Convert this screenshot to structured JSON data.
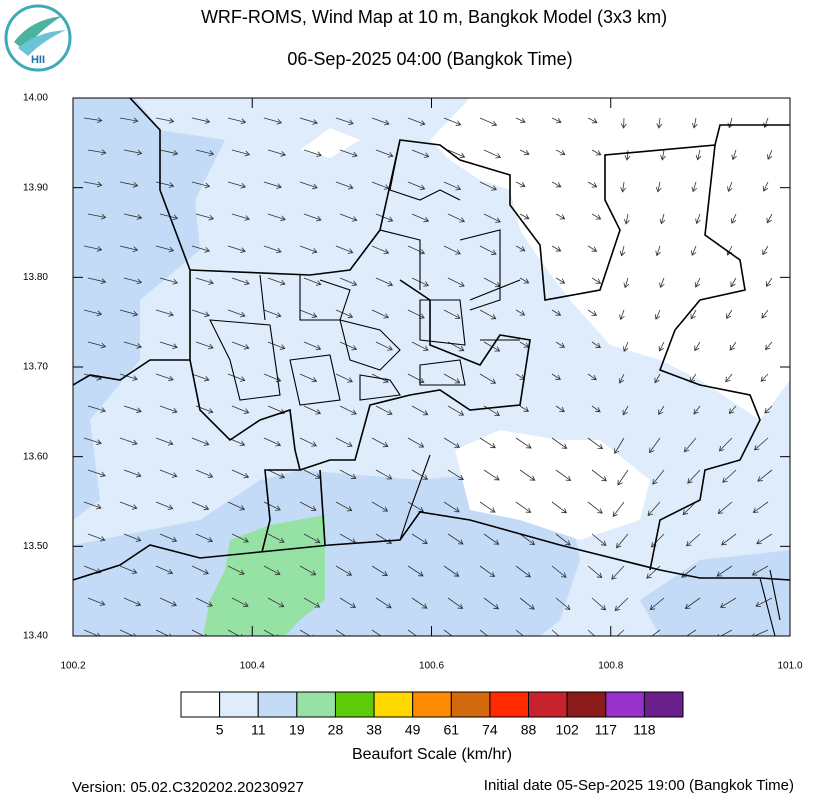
{
  "header": {
    "title": "WRF-ROMS, Wind Map at 10 m, Bangkok Model (3x3 km)",
    "subtitle": "06-Sep-2025 04:00 (Bangkok Time)",
    "logo_text": "HII"
  },
  "map": {
    "xlim": [
      100.2,
      101
    ],
    "xticks": [
      100.2,
      100.4,
      100.6,
      100.8,
      {
        "value": 101,
        "label": "101.0"
      }
    ],
    "ylim": [
      13.4,
      14
    ],
    "yticks": [
      {
        "value": 13.4,
        "label": "13.40"
      },
      {
        "value": 13.5,
        "label": "13.50"
      },
      {
        "value": 13.6,
        "label": "13.60"
      },
      {
        "value": 13.7,
        "label": "13.70"
      },
      {
        "value": 13.8,
        "label": "13.80"
      },
      {
        "value": 13.9,
        "label": "13.90"
      },
      {
        "value": 14,
        "label": "14.00"
      }
    ]
  },
  "colorbar": {
    "title": "Beaufort Scale (km/hr)",
    "colors": [
      "#ffffff",
      "#dfecfb",
      "#c3dbf7",
      "#96e2a4",
      "#5ecb0a",
      "#ffd800",
      "#ff8c00",
      "#d2690f",
      "#ff2a00",
      "#c8232d",
      "#8b1a1a",
      "#9932cc",
      "#6a1f8c"
    ],
    "labels": [
      5,
      11,
      19,
      28,
      38,
      49,
      61,
      74,
      88,
      102,
      117,
      118
    ]
  },
  "footer": {
    "version": "Version: 05.02.C320202.20230927",
    "initial_date": "Initial date 05-Sep-2025 19:00 (Bangkok Time)"
  }
}
